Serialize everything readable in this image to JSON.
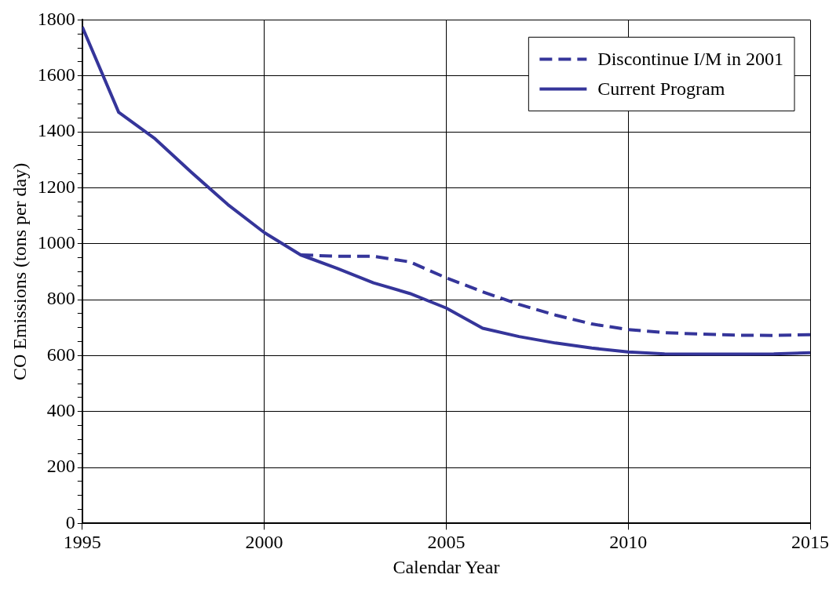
{
  "chart_data": {
    "type": "line",
    "xlabel": "Calendar Year",
    "ylabel": "CO Emissions (tons per day)",
    "xlim": [
      1995,
      2015
    ],
    "xticks": [
      1995,
      2000,
      2005,
      2010,
      2015
    ],
    "ylim": [
      0,
      1800
    ],
    "yticks": [
      0,
      {
        "value": 50,
        "label": null
      },
      {
        "value": 100,
        "label": null
      },
      {
        "value": 150,
        "label": null
      },
      200,
      {
        "value": 250,
        "label": null
      },
      {
        "value": 300,
        "label": null
      },
      {
        "value": 350,
        "label": null
      },
      400,
      {
        "value": 450,
        "label": null
      },
      {
        "value": 500,
        "label": null
      },
      {
        "value": 550,
        "label": null
      },
      600,
      {
        "value": 650,
        "label": null
      },
      {
        "value": 700,
        "label": null
      },
      {
        "value": 750,
        "label": null
      },
      800,
      {
        "value": 850,
        "label": null
      },
      {
        "value": 900,
        "label": null
      },
      {
        "value": 950,
        "label": null
      },
      1000,
      {
        "value": 1050,
        "label": null
      },
      {
        "value": 1100,
        "label": null
      },
      {
        "value": 1150,
        "label": null
      },
      1200,
      {
        "value": 1250,
        "label": null
      },
      {
        "value": 1300,
        "label": null
      },
      {
        "value": 1350,
        "label": null
      },
      1400,
      {
        "value": 1450,
        "label": null
      },
      {
        "value": 1500,
        "label": null
      },
      {
        "value": 1550,
        "label": null
      },
      1600,
      {
        "value": 1650,
        "label": null
      },
      {
        "value": 1700,
        "label": null
      },
      {
        "value": 1750,
        "label": null
      },
      1800
    ],
    "grid": true,
    "legend": "top right",
    "marker": "none",
    "series": [
      {
        "name": "Discontinue I/M in 2001",
        "color": "#35359a",
        "line_style": "dashed",
        "x": [
          2001,
          2002,
          2003,
          2004,
          2005,
          2006,
          2007,
          2008,
          2009,
          2010,
          2011,
          2012,
          2013,
          2014,
          2015
        ],
        "values": [
          960,
          955,
          955,
          935,
          878,
          828,
          783,
          745,
          713,
          693,
          682,
          677,
          673,
          672,
          675
        ]
      },
      {
        "name": "Current Program",
        "color": "#35359a",
        "line_style": "solid",
        "x": [
          1995,
          1996,
          1997,
          1998,
          1999,
          2000,
          2001,
          2002,
          2003,
          2004,
          2005,
          2006,
          2007,
          2008,
          2009,
          2010,
          2011,
          2012,
          2013,
          2014,
          2015
        ],
        "values": [
          1775,
          1470,
          1375,
          1255,
          1140,
          1040,
          960,
          912,
          860,
          822,
          770,
          698,
          668,
          645,
          627,
          613,
          606,
          605,
          605,
          606,
          610
        ]
      }
    ]
  }
}
